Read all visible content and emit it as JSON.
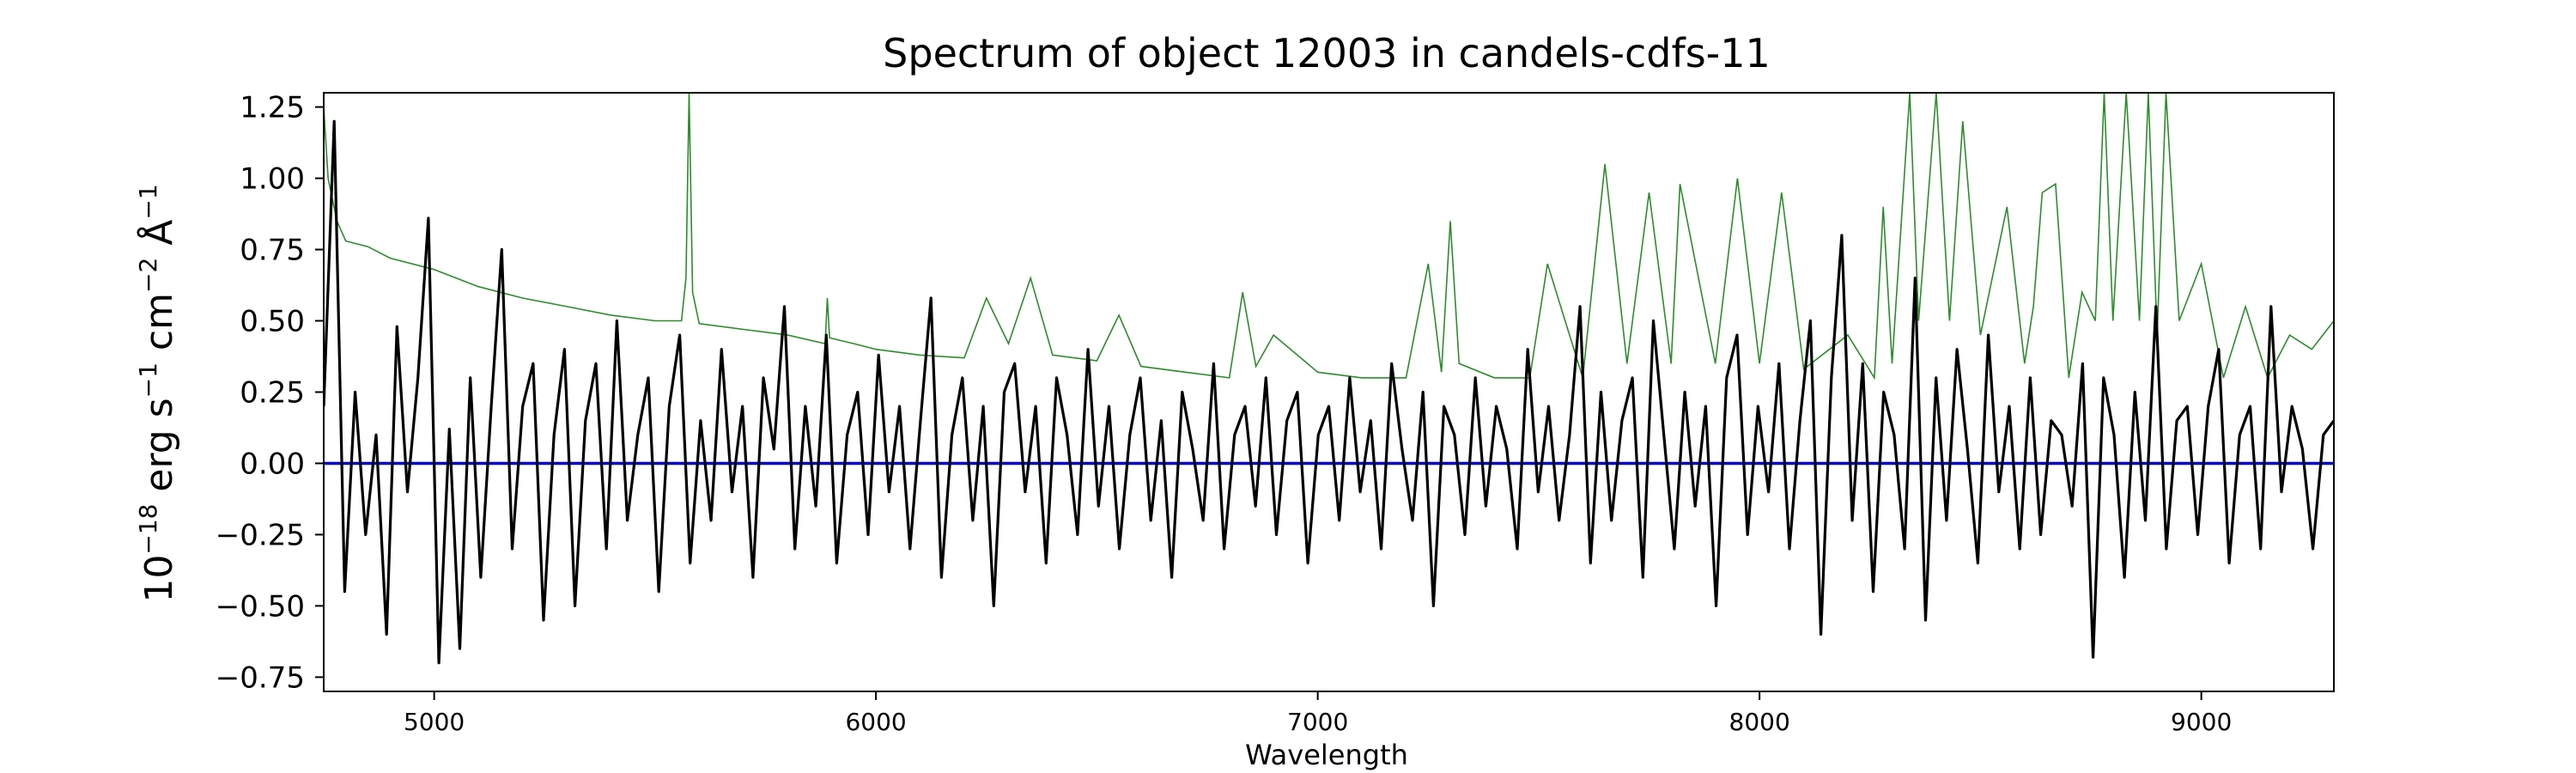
{
  "chart_data": {
    "type": "line",
    "title": "Spectrum of object 12003 in candels-cdfs-11",
    "xlabel": "Wavelength",
    "ylabel_base": "10",
    "ylabel_exp": "−18",
    "ylabel_unit_1": "erg s",
    "ylabel_unit_1_exp": "−1",
    "ylabel_unit_2": "cm",
    "ylabel_unit_2_exp": "−2",
    "ylabel_unit_3": "Å",
    "ylabel_unit_3_exp": "−1",
    "xlim": [
      4750,
      9300
    ],
    "ylim": [
      -0.8,
      1.3
    ],
    "xticks": [
      5000,
      6000,
      7000,
      8000,
      9000
    ],
    "xtick_labels": [
      "5000",
      "6000",
      "7000",
      "8000",
      "9000"
    ],
    "yticks": [
      -0.75,
      -0.5,
      -0.25,
      0.0,
      0.25,
      0.5,
      0.75,
      1.0,
      1.25
    ],
    "ytick_labels": [
      "−0.75",
      "−0.50",
      "−0.25",
      "0.00",
      "0.25",
      "0.50",
      "0.75",
      "1.00",
      "1.25"
    ],
    "grid": false,
    "colors": {
      "flux": "#000000",
      "error": "#2e8b2e",
      "zero": "#0000cc"
    },
    "series": [
      {
        "role": "error",
        "x": [
          4750,
          4760,
          4780,
          4800,
          4850,
          4900,
          5000,
          5100,
          5200,
          5300,
          5400,
          5500,
          5560,
          5570,
          5577,
          5585,
          5600,
          5700,
          5800,
          5885,
          5890,
          5895,
          5950,
          6000,
          6100,
          6200,
          6250,
          6300,
          6350,
          6400,
          6500,
          6550,
          6600,
          6700,
          6800,
          6830,
          6860,
          6900,
          7000,
          7100,
          7200,
          7250,
          7280,
          7300,
          7320,
          7400,
          7480,
          7520,
          7600,
          7650,
          7700,
          7750,
          7800,
          7820,
          7900,
          7950,
          8000,
          8050,
          8100,
          8200,
          8260,
          8280,
          8300,
          8340,
          8360,
          8400,
          8430,
          8460,
          8500,
          8560,
          8600,
          8620,
          8640,
          8670,
          8700,
          8730,
          8760,
          8780,
          8800,
          8830,
          8860,
          8880,
          8900,
          8920,
          8950,
          9000,
          9050,
          9100,
          9150,
          9200,
          9250,
          9300
        ],
        "values": [
          1.25,
          1.0,
          0.85,
          0.78,
          0.76,
          0.72,
          0.68,
          0.62,
          0.58,
          0.55,
          0.52,
          0.5,
          0.5,
          0.65,
          1.3,
          0.6,
          0.49,
          0.47,
          0.45,
          0.42,
          0.58,
          0.44,
          0.42,
          0.4,
          0.38,
          0.37,
          0.58,
          0.42,
          0.65,
          0.38,
          0.36,
          0.52,
          0.34,
          0.32,
          0.3,
          0.6,
          0.34,
          0.45,
          0.32,
          0.3,
          0.3,
          0.7,
          0.32,
          0.85,
          0.35,
          0.3,
          0.3,
          0.7,
          0.3,
          1.05,
          0.35,
          0.95,
          0.35,
          0.98,
          0.35,
          1.0,
          0.35,
          0.95,
          0.33,
          0.45,
          0.3,
          0.9,
          0.35,
          1.3,
          0.5,
          1.3,
          0.5,
          1.2,
          0.45,
          0.9,
          0.35,
          0.55,
          0.95,
          0.98,
          0.3,
          0.6,
          0.5,
          1.3,
          0.5,
          1.3,
          0.5,
          1.3,
          0.45,
          1.3,
          0.5,
          0.7,
          0.3,
          0.55,
          0.3,
          0.45,
          0.4,
          0.5
        ]
      },
      {
        "role": "flux",
        "x_start": 4750,
        "x_end": 9300,
        "values": [
          0.2,
          1.2,
          -0.45,
          0.25,
          -0.25,
          0.1,
          -0.6,
          0.48,
          -0.1,
          0.3,
          0.86,
          -0.7,
          0.12,
          -0.65,
          0.3,
          -0.4,
          0.2,
          0.75,
          -0.3,
          0.2,
          0.35,
          -0.55,
          0.1,
          0.4,
          -0.5,
          0.15,
          0.35,
          -0.3,
          0.5,
          -0.2,
          0.1,
          0.3,
          -0.45,
          0.2,
          0.45,
          -0.35,
          0.15,
          -0.2,
          0.4,
          -0.1,
          0.2,
          -0.4,
          0.3,
          0.05,
          0.55,
          -0.3,
          0.2,
          -0.15,
          0.45,
          -0.35,
          0.1,
          0.25,
          -0.25,
          0.38,
          -0.1,
          0.2,
          -0.3,
          0.15,
          0.58,
          -0.4,
          0.1,
          0.3,
          -0.2,
          0.2,
          -0.5,
          0.25,
          0.35,
          -0.1,
          0.2,
          -0.35,
          0.3,
          0.1,
          -0.25,
          0.4,
          -0.15,
          0.2,
          -0.3,
          0.1,
          0.3,
          -0.2,
          0.15,
          -0.4,
          0.25,
          0.05,
          -0.2,
          0.35,
          -0.3,
          0.1,
          0.2,
          -0.15,
          0.3,
          -0.25,
          0.15,
          0.25,
          -0.35,
          0.1,
          0.2,
          -0.2,
          0.3,
          -0.1,
          0.15,
          -0.3,
          0.35,
          0.05,
          -0.2,
          0.25,
          -0.5,
          0.2,
          0.1,
          -0.25,
          0.3,
          -0.15,
          0.2,
          0.05,
          -0.3,
          0.4,
          -0.1,
          0.2,
          -0.2,
          0.1,
          0.55,
          -0.35,
          0.25,
          -0.2,
          0.15,
          0.3,
          -0.4,
          0.5,
          0.1,
          -0.3,
          0.25,
          -0.15,
          0.2,
          -0.5,
          0.3,
          0.45,
          -0.25,
          0.2,
          -0.1,
          0.35,
          -0.3,
          0.15,
          0.5,
          -0.6,
          0.3,
          0.8,
          -0.2,
          0.35,
          -0.45,
          0.25,
          0.1,
          -0.3,
          0.65,
          -0.55,
          0.3,
          -0.2,
          0.4,
          0.05,
          -0.35,
          0.45,
          -0.1,
          0.2,
          -0.3,
          0.3,
          -0.25,
          0.15,
          0.1,
          -0.15,
          0.35,
          -0.68,
          0.3,
          0.1,
          -0.4,
          0.25,
          -0.2,
          0.55,
          -0.3,
          0.15,
          0.2,
          -0.25,
          0.2,
          0.4,
          -0.35,
          0.1,
          0.2,
          -0.3,
          0.55,
          -0.1,
          0.2,
          0.05,
          -0.3,
          0.1,
          0.15
        ]
      }
    ]
  }
}
